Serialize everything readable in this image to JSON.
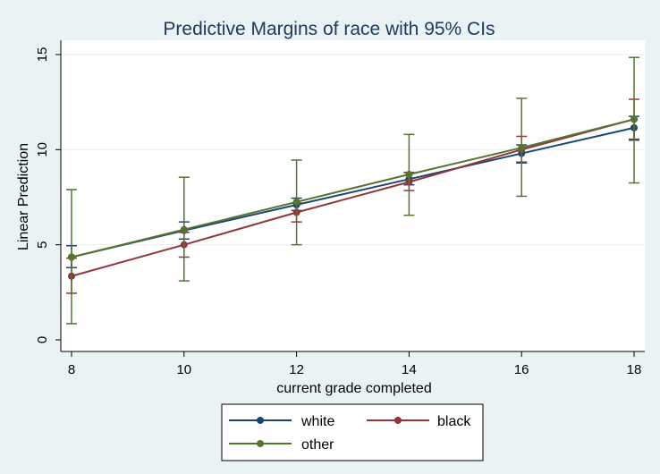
{
  "chart_data": {
    "type": "line",
    "title": "Predictive Margins of race with 95% CIs",
    "xlabel": "current grade completed",
    "ylabel": "Linear Prediction",
    "x": [
      8,
      10,
      12,
      14,
      16,
      18
    ],
    "xlim": [
      8,
      18
    ],
    "ylim": [
      0,
      15
    ],
    "xticks": [
      "8",
      "10",
      "12",
      "14",
      "16",
      "18"
    ],
    "yticks": [
      "0",
      "5",
      "10",
      "15"
    ],
    "grid": true,
    "legend": "bottom",
    "series": [
      {
        "name": "white",
        "color": "#1a476f",
        "values": [
          4.35,
          5.75,
          7.1,
          8.45,
          9.8,
          11.15
        ],
        "ci_low": [
          3.8,
          5.3,
          6.8,
          8.15,
          9.3,
          10.5
        ],
        "ci_high": [
          4.95,
          6.2,
          7.45,
          8.8,
          10.25,
          11.75
        ]
      },
      {
        "name": "black",
        "color": "#90353b",
        "values": [
          3.35,
          5.0,
          6.7,
          8.3,
          10.0,
          11.6
        ],
        "ci_low": [
          2.45,
          4.35,
          6.2,
          7.85,
          9.35,
          10.55
        ],
        "ci_high": [
          4.3,
          5.65,
          7.2,
          8.8,
          10.7,
          12.65
        ]
      },
      {
        "name": "other",
        "color": "#55752f",
        "values": [
          4.35,
          5.8,
          7.25,
          8.7,
          10.1,
          11.6
        ],
        "ci_low": [
          0.85,
          3.1,
          5.0,
          6.55,
          7.55,
          8.25
        ],
        "ci_high": [
          7.9,
          8.55,
          9.45,
          10.8,
          12.7,
          14.85
        ]
      }
    ]
  }
}
